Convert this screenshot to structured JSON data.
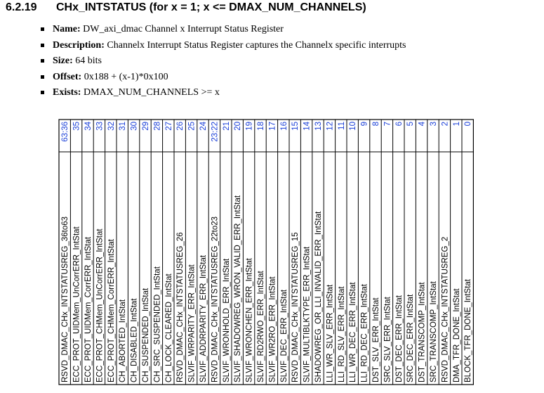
{
  "section": {
    "number": "6.2.19",
    "title": "CHx_INTSTATUS (for x = 1; x <= DMAX_NUM_CHANNELS)"
  },
  "properties": [
    {
      "key": "Name:",
      "value": "DW_axi_dmac Channel x Interrupt Status Register"
    },
    {
      "key": "Description:",
      "value": "Channelx Interrupt Status Register captures the Channelx specific interrupts"
    },
    {
      "key": "Size:",
      "value": "64 bits"
    },
    {
      "key": "Offset:",
      "value": "0x188 + (x-1)*0x100"
    },
    {
      "key": "Exists:",
      "value": "DMAX_NUM_CHANNELS >= x"
    }
  ],
  "register": {
    "bit_color": "#1a3fd8",
    "border_color": "#000000",
    "fields": [
      {
        "bits": "63:36",
        "name": "RSVD_DMAC_CHx_INTSTATUSREG_36to63"
      },
      {
        "bits": "35",
        "name": "ECC_PROT_UIDMem_UnCorrERR_IntStat"
      },
      {
        "bits": "34",
        "name": "ECC_PROT_UIDMem_CorrERR_IntStat"
      },
      {
        "bits": "33",
        "name": "ECC_PROT_CHMem_UnCorrERR_IntStat"
      },
      {
        "bits": "32",
        "name": "ECC_PROT_CHMem_CorrERR_IntStat"
      },
      {
        "bits": "31",
        "name": "CH_ABORTED_IntStat"
      },
      {
        "bits": "30",
        "name": "CH_DISABLED_IntStat"
      },
      {
        "bits": "29",
        "name": "CH_SUSPENDED_IntStat"
      },
      {
        "bits": "28",
        "name": "CH_SRC_SUSPENDED_IntStat"
      },
      {
        "bits": "27",
        "name": "CH_LOCK_CLEARED_IntStat"
      },
      {
        "bits": "26",
        "name": "RSVD_DMAC_CHx_INTSTATUSREG_26"
      },
      {
        "bits": "25",
        "name": "SLVIF_WRPARITY_ERR_IntStat"
      },
      {
        "bits": "24",
        "name": "SLVIF_ADDRPARITY_ERR_IntStat"
      },
      {
        "bits": "23:22",
        "name": "RSVD_DMAC_CHx_INTSTATUSREG_22to23"
      },
      {
        "bits": "21",
        "name": "SLVIF_WRONHOLD_ERR_IntStat"
      },
      {
        "bits": "20",
        "name": "SLVIF_SHADOWREG_WRON_VALID_ERR_IntStat"
      },
      {
        "bits": "19",
        "name": "SLVIF_WRONCHEN_ERR_IntStat"
      },
      {
        "bits": "18",
        "name": "SLVIF_RD2RWO_ERR_IntStat"
      },
      {
        "bits": "17",
        "name": "SLVIF_WR2RO_ERR_IntStat"
      },
      {
        "bits": "16",
        "name": "SLVIF_DEC_ERR_IntStat"
      },
      {
        "bits": "15",
        "name": "RSVD_DMAC_CHx_INTSTATUSREG_15"
      },
      {
        "bits": "14",
        "name": "SLVIF_MULTIBLKTYPE_ERR_IntStat"
      },
      {
        "bits": "13",
        "name": "SHADOWREG_OR_LLI_INVALID_ERR_IntStat"
      },
      {
        "bits": "12",
        "name": "LLI_WR_SLV_ERR_IntStat"
      },
      {
        "bits": "11",
        "name": "LLI_RD_SLV_ERR_IntStat"
      },
      {
        "bits": "10",
        "name": "LLI_WR_DEC_ERR_IntStat"
      },
      {
        "bits": "9",
        "name": "LLI_RD_DEC_ERR_IntStat"
      },
      {
        "bits": "8",
        "name": "DST_SLV_ERR_IntStat"
      },
      {
        "bits": "7",
        "name": "SRC_SLV_ERR_IntStat"
      },
      {
        "bits": "6",
        "name": "DST_DEC_ERR_IntStat"
      },
      {
        "bits": "5",
        "name": "SRC_DEC_ERR_IntStat"
      },
      {
        "bits": "4",
        "name": "DST_TRANSCOMP_IntStat"
      },
      {
        "bits": "3",
        "name": "SRC_TRANSCOMP_IntStat"
      },
      {
        "bits": "2",
        "name": "RSVD_DMAC_CHx_INTSTATUSREG_2"
      },
      {
        "bits": "1",
        "name": "DMA_TFR_DONE_IntStat"
      },
      {
        "bits": "0",
        "name": "BLOCK_TFR_DONE_IntStat"
      }
    ]
  }
}
